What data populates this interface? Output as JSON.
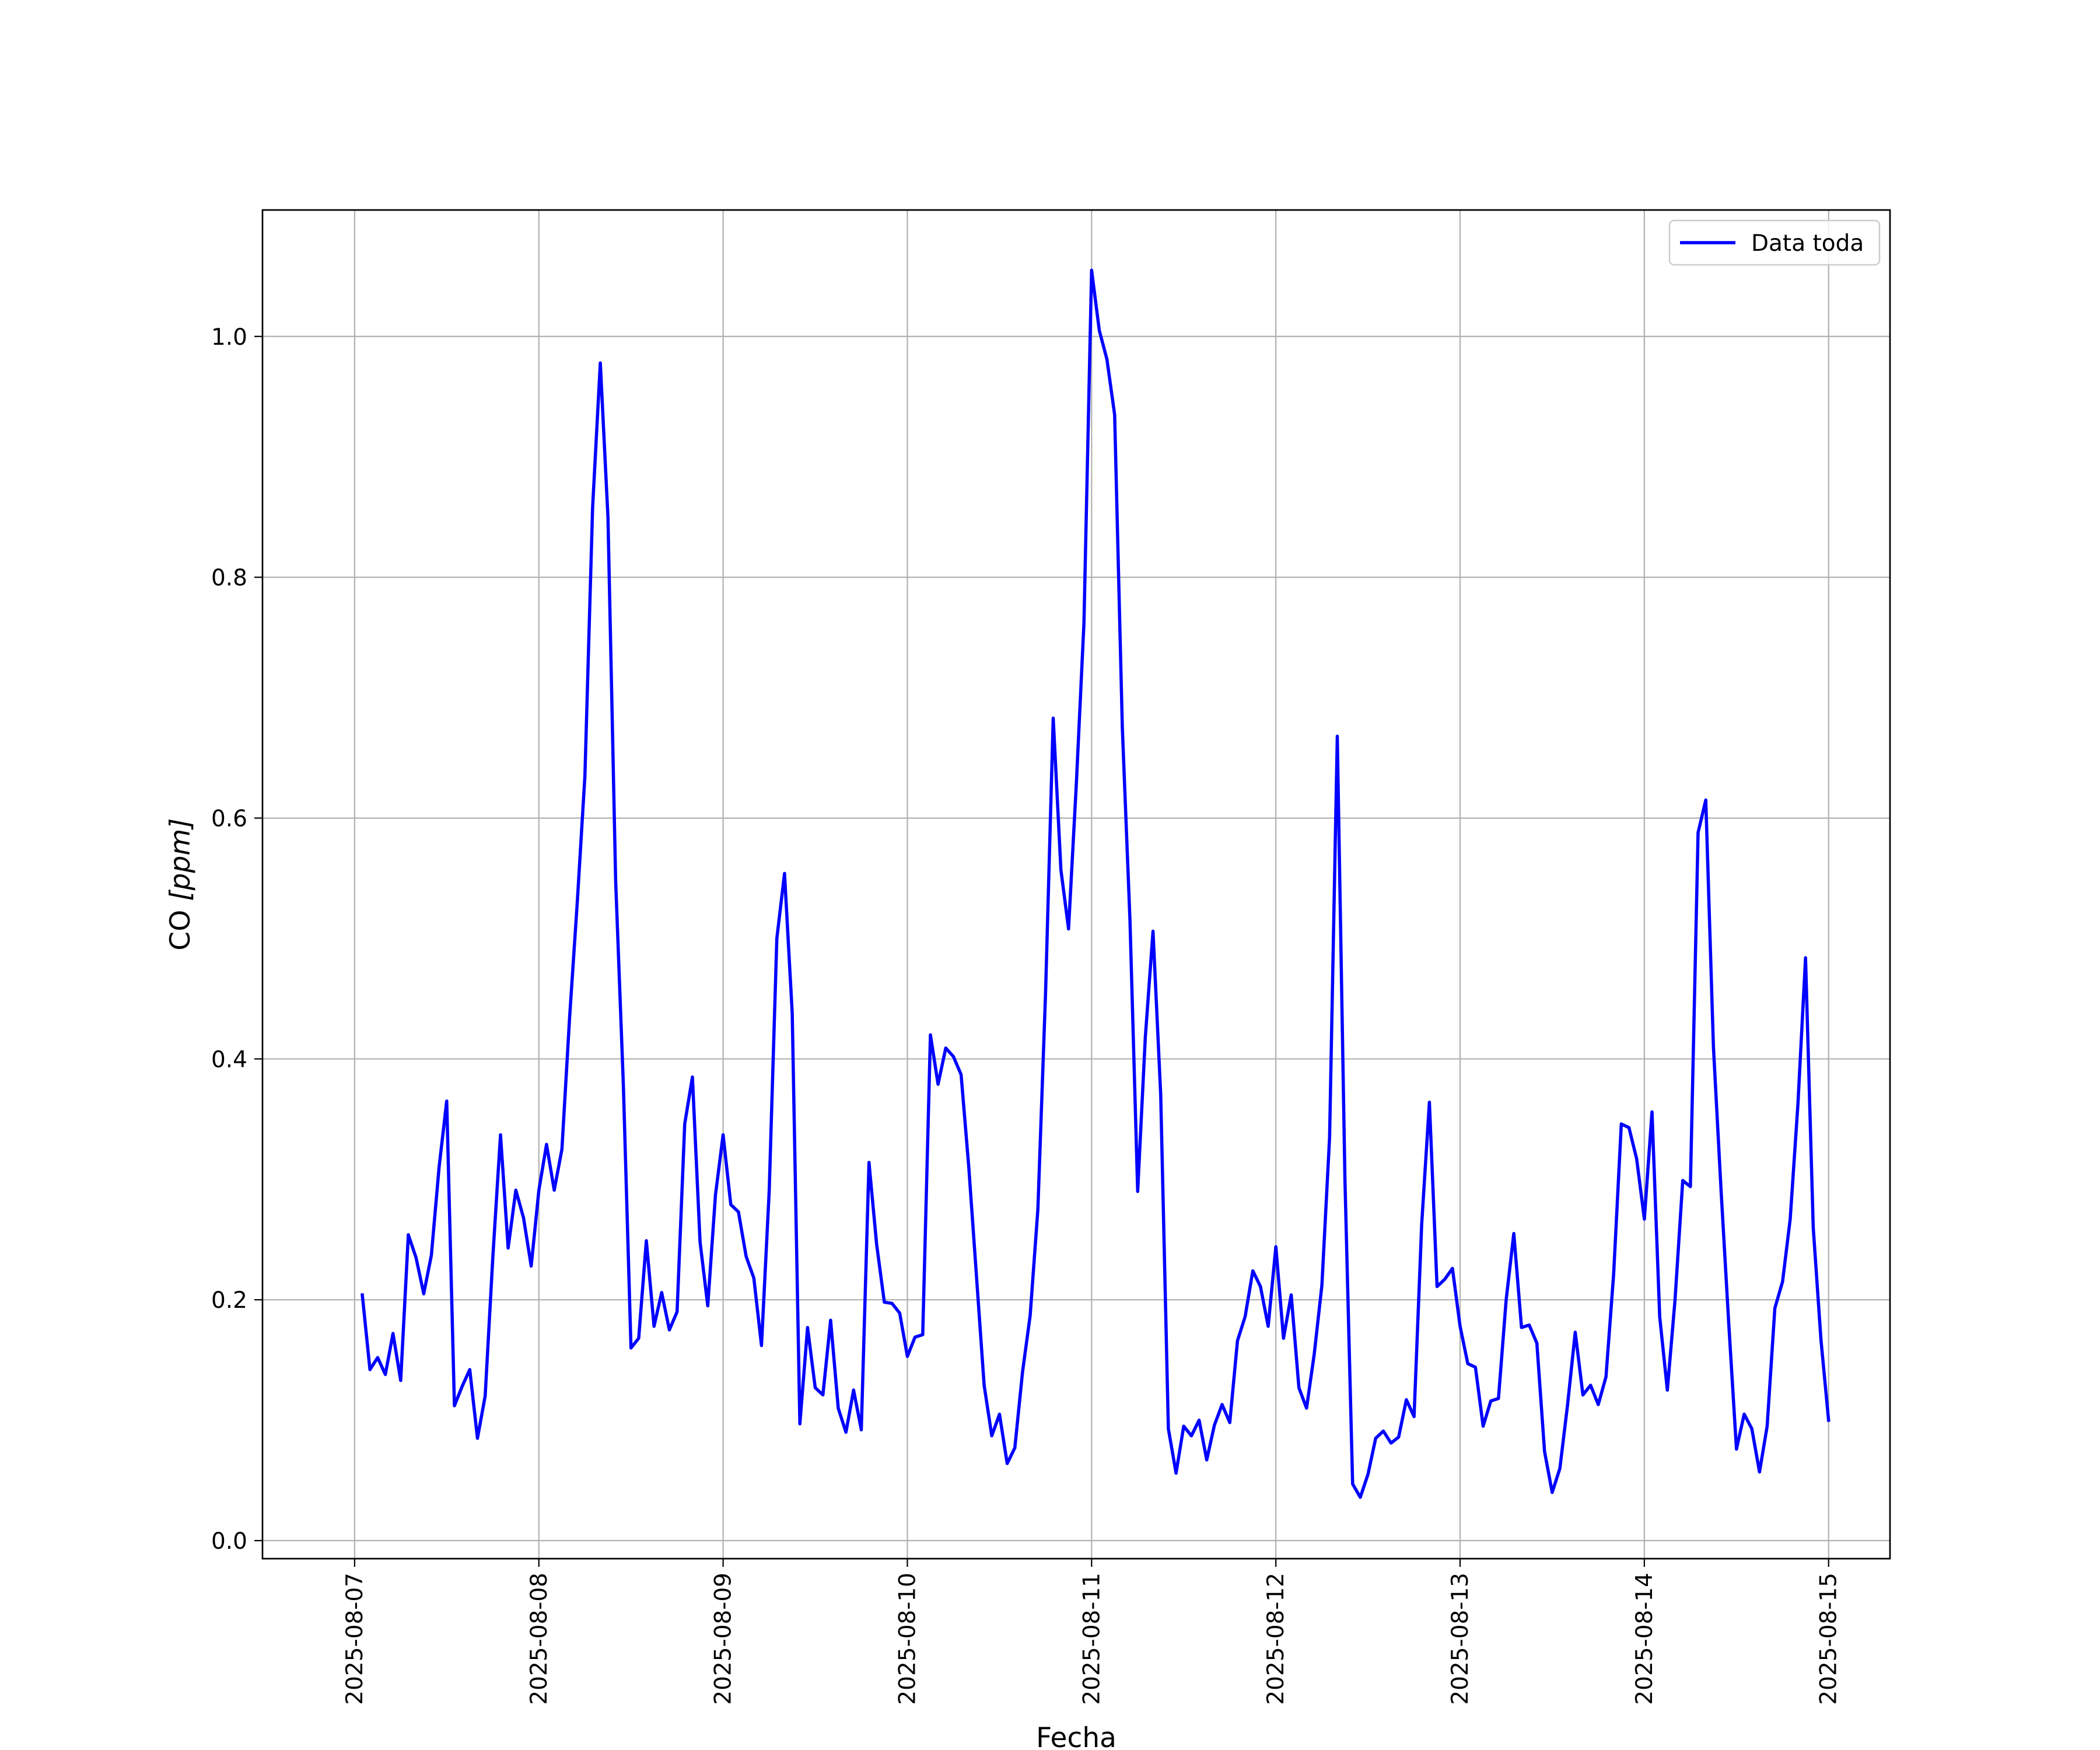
{
  "chart_data": {
    "type": "line",
    "xlabel": "Fecha",
    "ylabel_prefix": "CO ",
    "ylabel_unit": "[ppm]",
    "grid": true,
    "legend_position": "top-right",
    "xlim": [
      "2025-08-06 12:00",
      "2025-08-15 08:00"
    ],
    "ylim": [
      -0.015,
      1.105
    ],
    "x_ticks": [
      {
        "value": "2025-08-07",
        "label": "2025-08-07"
      },
      {
        "value": "2025-08-08",
        "label": "2025-08-08"
      },
      {
        "value": "2025-08-09",
        "label": "2025-08-09"
      },
      {
        "value": "2025-08-10",
        "label": "2025-08-10"
      },
      {
        "value": "2025-08-11",
        "label": "2025-08-11"
      },
      {
        "value": "2025-08-12",
        "label": "2025-08-12"
      },
      {
        "value": "2025-08-13",
        "label": "2025-08-13"
      },
      {
        "value": "2025-08-14",
        "label": "2025-08-14"
      },
      {
        "value": "2025-08-15",
        "label": "2025-08-15"
      }
    ],
    "y_ticks": [
      {
        "value": 0.0,
        "label": "0.0"
      },
      {
        "value": 0.2,
        "label": "0.2"
      },
      {
        "value": 0.4,
        "label": "0.4"
      },
      {
        "value": 0.6,
        "label": "0.6"
      },
      {
        "value": 0.8,
        "label": "0.8"
      },
      {
        "value": 1.0,
        "label": "1.0"
      }
    ],
    "series": [
      {
        "name": "Data toda",
        "color": "#0000ff",
        "x": [
          "2025-08-07 01:00",
          "2025-08-07 02:00",
          "2025-08-07 03:00",
          "2025-08-07 04:00",
          "2025-08-07 05:00",
          "2025-08-07 06:00",
          "2025-08-07 07:00",
          "2025-08-07 08:00",
          "2025-08-07 09:00",
          "2025-08-07 10:00",
          "2025-08-07 11:00",
          "2025-08-07 12:00",
          "2025-08-07 13:00",
          "2025-08-07 14:00",
          "2025-08-07 15:00",
          "2025-08-07 16:00",
          "2025-08-07 17:00",
          "2025-08-07 18:00",
          "2025-08-07 19:00",
          "2025-08-07 20:00",
          "2025-08-07 21:00",
          "2025-08-07 22:00",
          "2025-08-07 23:00",
          "2025-08-08 00:00",
          "2025-08-08 01:00",
          "2025-08-08 02:00",
          "2025-08-08 03:00",
          "2025-08-08 04:00",
          "2025-08-08 05:00",
          "2025-08-08 06:00",
          "2025-08-08 07:00",
          "2025-08-08 08:00",
          "2025-08-08 09:00",
          "2025-08-08 10:00",
          "2025-08-08 11:00",
          "2025-08-08 12:00",
          "2025-08-08 13:00",
          "2025-08-08 14:00",
          "2025-08-08 15:00",
          "2025-08-08 16:00",
          "2025-08-08 17:00",
          "2025-08-08 18:00",
          "2025-08-08 19:00",
          "2025-08-08 20:00",
          "2025-08-08 21:00",
          "2025-08-08 22:00",
          "2025-08-08 23:00",
          "2025-08-09 00:00",
          "2025-08-09 01:00",
          "2025-08-09 02:00",
          "2025-08-09 03:00",
          "2025-08-09 04:00",
          "2025-08-09 05:00",
          "2025-08-09 06:00",
          "2025-08-09 07:00",
          "2025-08-09 08:00",
          "2025-08-09 09:00",
          "2025-08-09 10:00",
          "2025-08-09 11:00",
          "2025-08-09 12:00",
          "2025-08-09 13:00",
          "2025-08-09 14:00",
          "2025-08-09 15:00",
          "2025-08-09 16:00",
          "2025-08-09 17:00",
          "2025-08-09 18:00",
          "2025-08-09 19:00",
          "2025-08-09 20:00",
          "2025-08-09 21:00",
          "2025-08-09 22:00",
          "2025-08-09 23:00",
          "2025-08-10 00:00",
          "2025-08-10 01:00",
          "2025-08-10 02:00",
          "2025-08-10 03:00",
          "2025-08-10 04:00",
          "2025-08-10 05:00",
          "2025-08-10 06:00",
          "2025-08-10 07:00",
          "2025-08-10 08:00",
          "2025-08-10 09:00",
          "2025-08-10 10:00",
          "2025-08-10 11:00",
          "2025-08-10 12:00",
          "2025-08-10 13:00",
          "2025-08-10 14:00",
          "2025-08-10 15:00",
          "2025-08-10 16:00",
          "2025-08-10 17:00",
          "2025-08-10 18:00",
          "2025-08-10 19:00",
          "2025-08-10 20:00",
          "2025-08-10 21:00",
          "2025-08-10 22:00",
          "2025-08-10 23:00",
          "2025-08-11 00:00",
          "2025-08-11 01:00",
          "2025-08-11 02:00",
          "2025-08-11 03:00",
          "2025-08-11 04:00",
          "2025-08-11 05:00",
          "2025-08-11 06:00",
          "2025-08-11 07:00",
          "2025-08-11 08:00",
          "2025-08-11 09:00",
          "2025-08-11 10:00",
          "2025-08-11 11:00",
          "2025-08-11 12:00",
          "2025-08-11 13:00",
          "2025-08-11 14:00",
          "2025-08-11 15:00",
          "2025-08-11 16:00",
          "2025-08-11 17:00",
          "2025-08-11 18:00",
          "2025-08-11 19:00",
          "2025-08-11 20:00",
          "2025-08-11 21:00",
          "2025-08-11 22:00",
          "2025-08-11 23:00",
          "2025-08-12 00:00",
          "2025-08-12 01:00",
          "2025-08-12 02:00",
          "2025-08-12 03:00",
          "2025-08-12 04:00",
          "2025-08-12 05:00",
          "2025-08-12 06:00",
          "2025-08-12 07:00",
          "2025-08-12 08:00",
          "2025-08-12 09:00",
          "2025-08-12 10:00",
          "2025-08-12 11:00",
          "2025-08-12 12:00",
          "2025-08-12 13:00",
          "2025-08-12 14:00",
          "2025-08-12 15:00",
          "2025-08-12 16:00",
          "2025-08-12 17:00",
          "2025-08-12 18:00",
          "2025-08-12 19:00",
          "2025-08-12 20:00",
          "2025-08-12 21:00",
          "2025-08-12 22:00",
          "2025-08-12 23:00",
          "2025-08-13 00:00",
          "2025-08-13 01:00",
          "2025-08-13 02:00",
          "2025-08-13 03:00",
          "2025-08-13 04:00",
          "2025-08-13 05:00",
          "2025-08-13 06:00",
          "2025-08-13 07:00",
          "2025-08-13 08:00",
          "2025-08-13 09:00",
          "2025-08-13 10:00",
          "2025-08-13 11:00",
          "2025-08-13 12:00",
          "2025-08-13 13:00",
          "2025-08-13 14:00",
          "2025-08-13 15:00",
          "2025-08-13 16:00",
          "2025-08-13 17:00",
          "2025-08-13 18:00",
          "2025-08-13 19:00",
          "2025-08-13 20:00",
          "2025-08-13 21:00",
          "2025-08-13 22:00",
          "2025-08-13 23:00",
          "2025-08-14 00:00",
          "2025-08-14 01:00",
          "2025-08-14 02:00",
          "2025-08-14 03:00",
          "2025-08-14 04:00",
          "2025-08-14 05:00",
          "2025-08-14 06:00",
          "2025-08-14 07:00",
          "2025-08-14 08:00",
          "2025-08-14 09:00",
          "2025-08-14 10:00",
          "2025-08-14 11:00",
          "2025-08-14 12:00",
          "2025-08-14 13:00",
          "2025-08-14 14:00",
          "2025-08-14 15:00",
          "2025-08-14 16:00",
          "2025-08-14 17:00",
          "2025-08-14 18:00",
          "2025-08-14 19:00",
          "2025-08-14 20:00",
          "2025-08-14 21:00",
          "2025-08-14 22:00",
          "2025-08-14 23:00",
          "2025-08-15 00:00"
        ],
        "y": [
          0.204,
          0.142,
          0.152,
          0.138,
          0.172,
          0.133,
          0.254,
          0.235,
          0.205,
          0.237,
          0.31,
          0.365,
          0.112,
          0.128,
          0.142,
          0.085,
          0.12,
          0.235,
          0.337,
          0.243,
          0.291,
          0.268,
          0.228,
          0.291,
          0.329,
          0.291,
          0.325,
          0.434,
          0.53,
          0.635,
          0.858,
          0.978,
          0.85,
          0.548,
          0.38,
          0.16,
          0.168,
          0.249,
          0.178,
          0.206,
          0.175,
          0.19,
          0.346,
          0.385,
          0.248,
          0.195,
          0.287,
          0.337,
          0.279,
          0.273,
          0.236,
          0.218,
          0.162,
          0.29,
          0.5,
          0.554,
          0.438,
          0.097,
          0.177,
          0.127,
          0.121,
          0.183,
          0.11,
          0.09,
          0.125,
          0.092,
          0.314,
          0.246,
          0.198,
          0.197,
          0.189,
          0.153,
          0.169,
          0.171,
          0.42,
          0.379,
          0.409,
          0.402,
          0.387,
          0.31,
          0.22,
          0.129,
          0.087,
          0.105,
          0.064,
          0.077,
          0.14,
          0.187,
          0.275,
          0.455,
          0.683,
          0.557,
          0.508,
          0.627,
          0.762,
          1.055,
          1.005,
          0.981,
          0.935,
          0.675,
          0.515,
          0.29,
          0.418,
          0.506,
          0.37,
          0.093,
          0.056,
          0.095,
          0.087,
          0.1,
          0.067,
          0.096,
          0.113,
          0.098,
          0.166,
          0.186,
          0.224,
          0.211,
          0.178,
          0.244,
          0.168,
          0.204,
          0.127,
          0.11,
          0.155,
          0.212,
          0.335,
          0.668,
          0.3,
          0.047,
          0.036,
          0.055,
          0.085,
          0.091,
          0.081,
          0.086,
          0.117,
          0.103,
          0.263,
          0.364,
          0.211,
          0.217,
          0.226,
          0.178,
          0.147,
          0.144,
          0.095,
          0.116,
          0.118,
          0.2,
          0.255,
          0.177,
          0.179,
          0.164,
          0.074,
          0.04,
          0.06,
          0.113,
          0.173,
          0.121,
          0.129,
          0.113,
          0.136,
          0.221,
          0.346,
          0.343,
          0.317,
          0.267,
          0.356,
          0.186,
          0.125,
          0.2,
          0.299,
          0.294,
          0.588,
          0.615,
          0.41,
          0.29,
          0.18,
          0.076,
          0.105,
          0.093,
          0.057,
          0.095,
          0.193,
          0.215,
          0.267,
          0.362,
          0.484,
          0.26,
          0.167,
          0.1
        ]
      }
    ]
  }
}
